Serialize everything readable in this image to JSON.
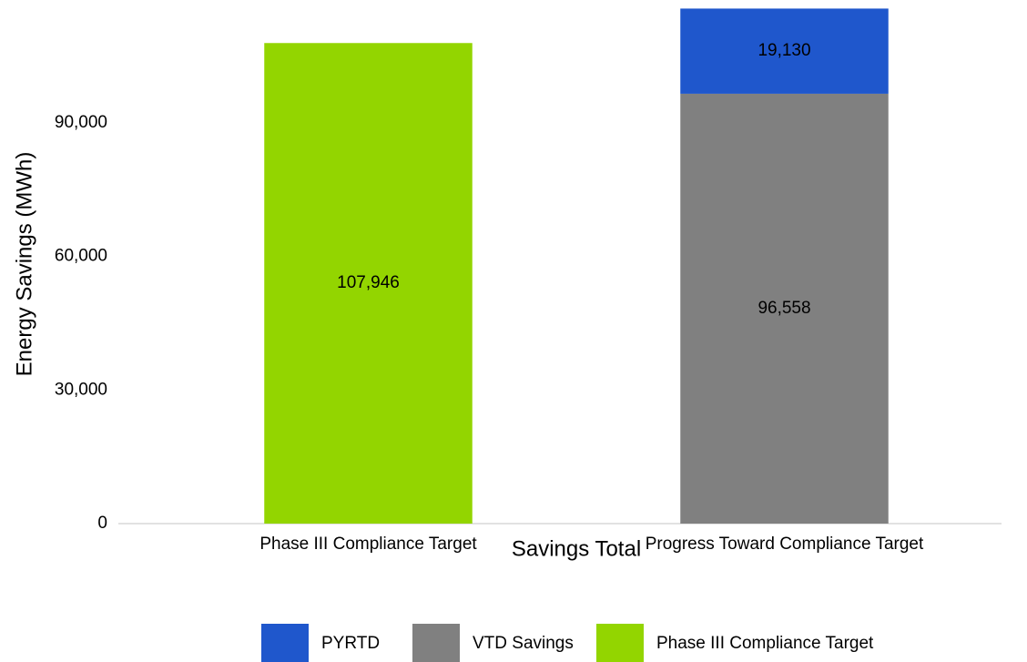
{
  "chart_data": {
    "type": "stacked_bar",
    "x_label": "Savings Total",
    "y_label": "Energy Savings (MWh)",
    "categories": [
      "Phase III Compliance Target",
      "Progress Toward Compliance Target"
    ],
    "series": [
      {
        "name": "PYRTD",
        "color": "#1f57cc",
        "values": [
          null,
          19130
        ],
        "value_labels": [
          null,
          "19,130"
        ]
      },
      {
        "name": "VTD Savings",
        "color": "#808080",
        "values": [
          null,
          96558
        ],
        "value_labels": [
          null,
          "96,558"
        ]
      },
      {
        "name": "Phase III Compliance Target",
        "color": "#93d500",
        "values": [
          107946,
          null
        ],
        "value_labels": [
          "107,946",
          null
        ]
      }
    ],
    "ylim": [
      0,
      117000
    ],
    "yticks": [
      0,
      {
        "value": 30000,
        "label": "30,000"
      },
      {
        "value": 60000,
        "label": "60,000"
      },
      {
        "value": 90000,
        "label": "90,000"
      }
    ],
    "grid": false,
    "legend": "bottom"
  }
}
